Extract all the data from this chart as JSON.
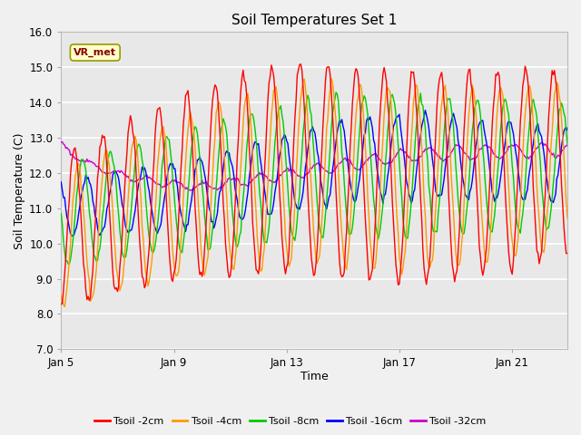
{
  "title": "Soil Temperatures Set 1",
  "xlabel": "Time",
  "ylabel": "Soil Temperature (C)",
  "ylim": [
    7.0,
    16.0
  ],
  "yticks": [
    7.0,
    8.0,
    9.0,
    10.0,
    11.0,
    12.0,
    13.0,
    14.0,
    15.0,
    16.0
  ],
  "xtick_labels": [
    "Jan 5",
    "Jan 9",
    "Jan 13",
    "Jan 17",
    "Jan 21"
  ],
  "xtick_positions": [
    0,
    96,
    192,
    288,
    384
  ],
  "total_points": 432,
  "background_color": "#f0f0f0",
  "plot_bg_color": "#e8e8e8",
  "grid_color": "#ffffff",
  "colors": {
    "2cm": "#ff0000",
    "4cm": "#ff9900",
    "8cm": "#00cc00",
    "16cm": "#0000ff",
    "32cm": "#cc00cc"
  },
  "legend_labels": [
    "Tsoil -2cm",
    "Tsoil -4cm",
    "Tsoil -8cm",
    "Tsoil -16cm",
    "Tsoil -32cm"
  ],
  "annotation_text": "VR_met",
  "annotation_color": "#880000",
  "annotation_bg": "#ffffcc",
  "annotation_border": "#999900"
}
